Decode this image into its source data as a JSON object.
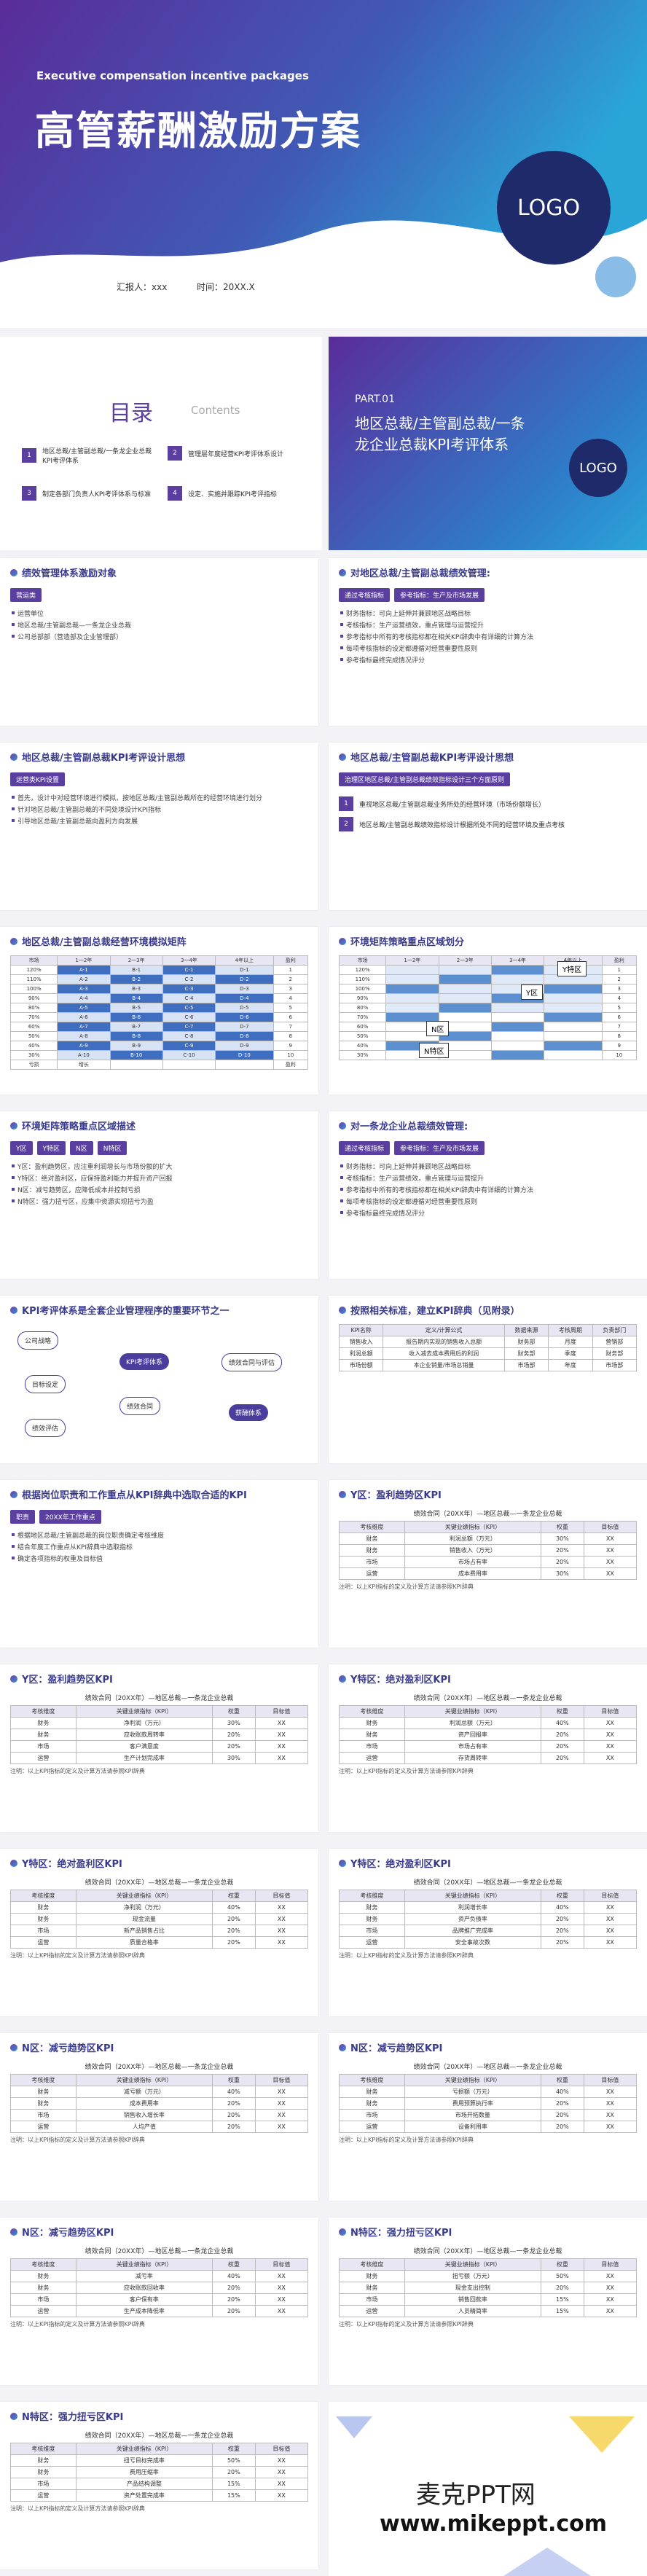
{
  "cover": {
    "subtitle_en": "Executive compensation incentive packages",
    "title": "高管薪酬激励方案",
    "logo": "LOGO",
    "reporter": "汇报人：xxx",
    "date": "时间：20XX.X"
  },
  "contents": {
    "title": "目录",
    "title_en": "Contents",
    "items": [
      {
        "num": "1",
        "text": "地区总裁/主管副总裁/一条龙企业总裁KPI考评体系"
      },
      {
        "num": "2",
        "text": "管理层年度经营KPI考评体系设计"
      },
      {
        "num": "3",
        "text": "制定各部门负责人KPI考评体系与标准"
      },
      {
        "num": "4",
        "text": "设定、实施并跟踪KPI考评指标"
      }
    ]
  },
  "part": {
    "label": "PART.01",
    "title": "地区总裁/主管副总裁/一条龙企业总裁KPI考评体系",
    "logo": "LOGO"
  },
  "slides": [
    {
      "title": "绩效管理体系激励对象",
      "tags": [
        "营运类"
      ],
      "bullets": [
        "运营单位",
        "地区总裁/主管副总裁—一条龙企业总裁",
        "公司总部部（营造部及企业管理部）"
      ]
    },
    {
      "title": "对地区总裁/主管副总裁绩效管理:",
      "tags": [
        "通过考核指标",
        "参考指标：生产及市场发展"
      ],
      "bullets": [
        "财务指标：可向上延伸并兼顾地区战略目标",
        "考核指标：生产运营绩效，重点管理与运营提升",
        "参考指标中所有的考核指标都在相关KPI辞典中有详细的计算方法",
        "每项考核指标的设定都遵循对经营重要性原则",
        "参考指标最终完成情况评分"
      ]
    },
    {
      "title": "地区总裁/主管副总裁KPI考评设计思想",
      "tags": [
        "运营类KPI设置"
      ],
      "bullets": [
        "首先，设计中对经营环境进行模拟，按地区总裁/主管副总裁所在的经营环境进行划分",
        "针对地区总裁/主管副总裁的不同处境设计KPI指标",
        "引导地区总裁/主管副总裁向盈利方向发展"
      ]
    },
    {
      "title": "地区总裁/主管副总裁KPI考评设计思想",
      "tags": [
        "治理区地区总裁/主管副总裁绩效指标设计三个方面原则"
      ],
      "numbered": [
        {
          "num": "1",
          "text": "重视地区总裁/主管副总裁业务所处的经营环境（市场份额增长）"
        },
        {
          "num": "2",
          "text": "地区总裁/主管副总裁绩效指标设计根据所处不同的经营环境及重点考核"
        }
      ]
    },
    {
      "title": "地区总裁/主管副总裁经营环境模拟矩阵",
      "matrix": {
        "header": [
          "市场",
          "1一2年",
          "2一3年",
          "3一4年",
          "4年以上",
          "盈利"
        ],
        "rows": [
          [
            "120%",
            "A-1",
            "B-1",
            "C-1",
            "D-1",
            "1"
          ],
          [
            "110%",
            "A-2",
            "B-2",
            "C-2",
            "D-2",
            "2"
          ],
          [
            "100%",
            "A-3",
            "B-3",
            "C-3",
            "D-3",
            "3"
          ],
          [
            "90%",
            "A-4",
            "B-4",
            "C-4",
            "D-4",
            "4"
          ],
          [
            "80%",
            "A-5",
            "B-5",
            "C-5",
            "D-5",
            "5"
          ],
          [
            "70%",
            "A-6",
            "B-6",
            "C-6",
            "D-6",
            "6"
          ],
          [
            "60%",
            "A-7",
            "B-7",
            "C-7",
            "D-7",
            "7"
          ],
          [
            "50%",
            "A-8",
            "B-8",
            "C-8",
            "D-8",
            "8"
          ],
          [
            "40%",
            "A-9",
            "B-9",
            "C-9",
            "D-9",
            "9"
          ],
          [
            "30%",
            "A-10",
            "B-10",
            "C-10",
            "D-10",
            "10"
          ]
        ],
        "footer": [
          "亏损",
          "增长",
          "",
          "",
          "",
          "盈利"
        ]
      }
    },
    {
      "title": "环境矩阵策略重点区域划分",
      "matrix": {
        "header": [
          "市场",
          "1一2年",
          "2一3年",
          "3一4年",
          "4年以上",
          "盈利"
        ],
        "rows": [
          [
            "120%",
            "",
            "",
            "",
            "",
            "1"
          ],
          [
            "110%",
            "",
            "",
            "",
            "",
            "2"
          ],
          [
            "100%",
            "",
            "",
            "",
            "",
            "3"
          ],
          [
            "90%",
            "",
            "",
            "",
            "",
            "4"
          ],
          [
            "80%",
            "",
            "",
            "",
            "",
            "5"
          ],
          [
            "70%",
            "",
            "",
            "",
            "",
            "6"
          ],
          [
            "60%",
            "",
            "",
            "",
            "",
            "7"
          ],
          [
            "50%",
            "",
            "",
            "",
            "",
            "8"
          ],
          [
            "40%",
            "",
            "",
            "",
            "",
            "9"
          ],
          [
            "30%",
            "",
            "",
            "",
            "",
            "10"
          ]
        ],
        "zones": [
          "Y特区",
          "Y区",
          "N区",
          "N特区"
        ]
      }
    },
    {
      "title": "环境矩阵策略重点区域描述",
      "tags": [
        "Y区",
        "Y特区",
        "N区",
        "N特区"
      ],
      "bullets": [
        "Y区：盈利趋势区，应注重利润增长与市场份额的扩大",
        "Y特区：绝对盈利区，应保持盈利能力并提升资产回报",
        "N区：减亏趋势区，应降低成本并控制亏损",
        "N特区：强力扭亏区，应集中资源实现扭亏为盈"
      ]
    },
    {
      "title": "对一条龙企业总裁绩效管理:",
      "tags": [
        "通过考核指标",
        "参考指标：生产及市场发展"
      ],
      "bullets": [
        "财务指标：可向上延伸并兼顾地区战略目标",
        "考核指标：生产运营绩效，重点管理与运营提升",
        "参考指标中所有的考核指标都在相关KPI辞典中有详细的计算方法",
        "每项考核指标的设定都遵循对经营重要性原则",
        "参考指标最终完成情况评分"
      ]
    },
    {
      "title": "KPI考评体系是全套企业管理程序的重要环节之一",
      "diagram": [
        "公司战略",
        "KPI考评体系",
        "目标设定",
        "绩效合同",
        "绩效评估",
        "绩效合同与评估",
        "薪酬体系"
      ]
    },
    {
      "title": "按照相关标准，建立KPI辞典（见附录）",
      "table": {
        "header": [
          "KPI名称",
          "定义/计算公式",
          "数据来源",
          "考核周期",
          "负责部门"
        ],
        "rows": [
          [
            "销售收入",
            "报告期内实现的销售收入总额",
            "财务部",
            "月度",
            "营销部"
          ],
          [
            "利润总额",
            "收入减去成本费用后的利润",
            "财务部",
            "季度",
            "财务部"
          ],
          [
            "市场份额",
            "本企业销量/市场总销量",
            "市场部",
            "年度",
            "市场部"
          ]
        ]
      }
    },
    {
      "title": "根据岗位职责和工作重点从KPI辞典中选取合适的KPI",
      "tags": [
        "职责",
        "20XX年工作重点"
      ],
      "bullets": [
        "根据地区总裁/主管副总裁的岗位职责确定考核维度",
        "结合年度工作重点从KPI辞典中选取指标",
        "确定各项指标的权重及目标值"
      ]
    },
    {
      "title": "Y区：盈利趋势区KPI",
      "table": {
        "caption": "绩效合同（20XX年）—地区总裁—一条龙企业总裁",
        "header": [
          "考核维度",
          "关键业绩指标（KPI）",
          "权重",
          "目标值"
        ],
        "rows": [
          [
            "财务",
            "利润总额（万元）",
            "30%",
            "XX"
          ],
          [
            "财务",
            "销售收入（万元）",
            "20%",
            "XX"
          ],
          [
            "市场",
            "市场占有率",
            "20%",
            "XX"
          ],
          [
            "运营",
            "成本费用率",
            "30%",
            "XX"
          ]
        ],
        "note": "注明：以上KPI指标的定义及计算方法请参照KPI辞典"
      }
    },
    {
      "title": "Y区：盈利趋势区KPI",
      "table": {
        "caption": "绩效合同（20XX年）—地区总裁—一条龙企业总裁",
        "header": [
          "考核维度",
          "关键业绩指标（KPI）",
          "权重",
          "目标值"
        ],
        "rows": [
          [
            "财务",
            "净利润（万元）",
            "30%",
            "XX"
          ],
          [
            "财务",
            "应收账款周转率",
            "20%",
            "XX"
          ],
          [
            "市场",
            "客户满意度",
            "20%",
            "XX"
          ],
          [
            "运营",
            "生产计划完成率",
            "30%",
            "XX"
          ]
        ],
        "note": "注明：以上KPI指标的定义及计算方法请参照KPI辞典"
      }
    },
    {
      "title": "Y特区：绝对盈利区KPI",
      "table": {
        "caption": "绩效合同（20XX年）—地区总裁—一条龙企业总裁",
        "header": [
          "考核维度",
          "关键业绩指标（KPI）",
          "权重",
          "目标值"
        ],
        "rows": [
          [
            "财务",
            "利润总额（万元）",
            "40%",
            "XX"
          ],
          [
            "财务",
            "资产回报率",
            "20%",
            "XX"
          ],
          [
            "市场",
            "市场占有率",
            "20%",
            "XX"
          ],
          [
            "运营",
            "存货周转率",
            "20%",
            "XX"
          ]
        ],
        "note": "注明：以上KPI指标的定义及计算方法请参照KPI辞典"
      }
    },
    {
      "title": "Y特区：绝对盈利区KPI",
      "table": {
        "caption": "绩效合同（20XX年）—地区总裁—一条龙企业总裁",
        "header": [
          "考核维度",
          "关键业绩指标（KPI）",
          "权重",
          "目标值"
        ],
        "rows": [
          [
            "财务",
            "净利润（万元）",
            "40%",
            "XX"
          ],
          [
            "财务",
            "现金流量",
            "20%",
            "XX"
          ],
          [
            "市场",
            "新产品销售占比",
            "20%",
            "XX"
          ],
          [
            "运营",
            "质量合格率",
            "20%",
            "XX"
          ]
        ],
        "note": "注明：以上KPI指标的定义及计算方法请参照KPI辞典"
      }
    },
    {
      "title": "Y特区：绝对盈利区KPI",
      "table": {
        "caption": "绩效合同（20XX年）—地区总裁—一条龙企业总裁",
        "header": [
          "考核维度",
          "关键业绩指标（KPI）",
          "权重",
          "目标值"
        ],
        "rows": [
          [
            "财务",
            "利润增长率",
            "40%",
            "XX"
          ],
          [
            "财务",
            "资产负债率",
            "20%",
            "XX"
          ],
          [
            "市场",
            "品牌推广完成率",
            "20%",
            "XX"
          ],
          [
            "运营",
            "安全事故次数",
            "20%",
            "XX"
          ]
        ],
        "note": "注明：以上KPI指标的定义及计算方法请参照KPI辞典"
      }
    },
    {
      "title": "N区：减亏趋势区KPI",
      "table": {
        "caption": "绩效合同（20XX年）—地区总裁—一条龙企业总裁",
        "header": [
          "考核维度",
          "关键业绩指标（KPI）",
          "权重",
          "目标值"
        ],
        "rows": [
          [
            "财务",
            "减亏额（万元）",
            "40%",
            "XX"
          ],
          [
            "财务",
            "成本费用率",
            "20%",
            "XX"
          ],
          [
            "市场",
            "销售收入增长率",
            "20%",
            "XX"
          ],
          [
            "运营",
            "人均产值",
            "20%",
            "XX"
          ]
        ],
        "note": "注明：以上KPI指标的定义及计算方法请参照KPI辞典"
      }
    },
    {
      "title": "N区：减亏趋势区KPI",
      "table": {
        "caption": "绩效合同（20XX年）—地区总裁—一条龙企业总裁",
        "header": [
          "考核维度",
          "关键业绩指标（KPI）",
          "权重",
          "目标值"
        ],
        "rows": [
          [
            "财务",
            "亏损额（万元）",
            "40%",
            "XX"
          ],
          [
            "财务",
            "费用预算执行率",
            "20%",
            "XX"
          ],
          [
            "市场",
            "市场开拓数量",
            "20%",
            "XX"
          ],
          [
            "运营",
            "设备利用率",
            "20%",
            "XX"
          ]
        ],
        "note": "注明：以上KPI指标的定义及计算方法请参照KPI辞典"
      }
    },
    {
      "title": "N区：减亏趋势区KPI",
      "table": {
        "caption": "绩效合同（20XX年）—地区总裁—一条龙企业总裁",
        "header": [
          "考核维度",
          "关键业绩指标（KPI）",
          "权重",
          "目标值"
        ],
        "rows": [
          [
            "财务",
            "减亏率",
            "40%",
            "XX"
          ],
          [
            "财务",
            "应收账款回收率",
            "20%",
            "XX"
          ],
          [
            "市场",
            "客户保有率",
            "20%",
            "XX"
          ],
          [
            "运营",
            "生产成本降低率",
            "20%",
            "XX"
          ]
        ],
        "note": "注明：以上KPI指标的定义及计算方法请参照KPI辞典"
      }
    },
    {
      "title": "N特区：强力扭亏区KPI",
      "table": {
        "caption": "绩效合同（20XX年）—地区总裁—一条龙企业总裁",
        "header": [
          "考核维度",
          "关键业绩指标（KPI）",
          "权重",
          "目标值"
        ],
        "rows": [
          [
            "财务",
            "扭亏额（万元）",
            "50%",
            "XX"
          ],
          [
            "财务",
            "现金支出控制",
            "20%",
            "XX"
          ],
          [
            "市场",
            "销售回款率",
            "15%",
            "XX"
          ],
          [
            "运营",
            "人员精简率",
            "15%",
            "XX"
          ]
        ],
        "note": "注明：以上KPI指标的定义及计算方法请参照KPI辞典"
      }
    },
    {
      "title": "N特区：强力扭亏区KPI",
      "table": {
        "caption": "绩效合同（20XX年）—地区总裁—一条龙企业总裁",
        "header": [
          "考核维度",
          "关键业绩指标（KPI）",
          "权重",
          "目标值"
        ],
        "rows": [
          [
            "财务",
            "扭亏目标完成率",
            "50%",
            "XX"
          ],
          [
            "财务",
            "费用压缩率",
            "20%",
            "XX"
          ],
          [
            "市场",
            "产品结构调整",
            "15%",
            "XX"
          ],
          [
            "运营",
            "资产处置完成率",
            "15%",
            "XX"
          ]
        ],
        "note": "注明：以上KPI指标的定义及计算方法请参照KPI辞典"
      }
    }
  ],
  "watermark": {
    "name": "麦克PPT网",
    "url": "www.mikeppt.com"
  }
}
